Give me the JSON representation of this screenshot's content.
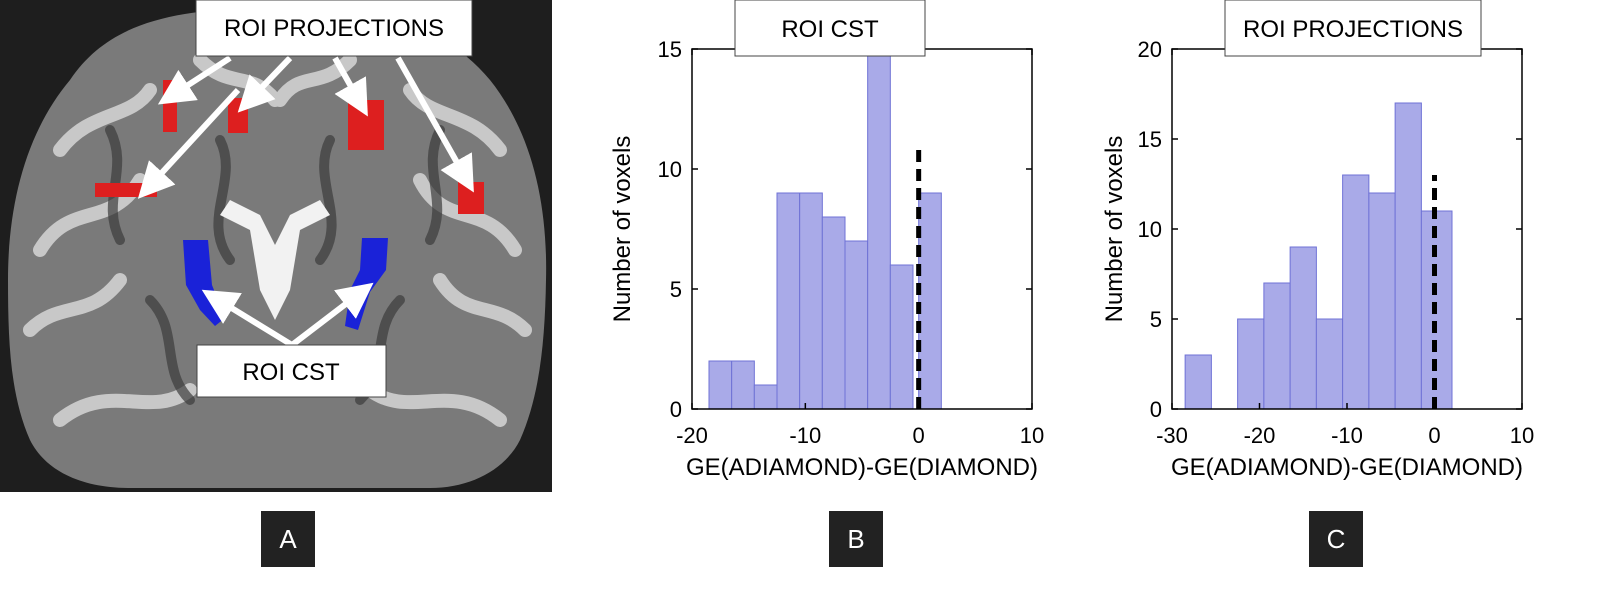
{
  "panel_a": {
    "label_top": "ROI PROJECTIONS",
    "label_bottom": "ROI CST",
    "colors": {
      "background": "#1e1e1e",
      "roi_projections": "#dd1f1f",
      "roi_cst": "#1a22d8",
      "arrow": "#ffffff"
    }
  },
  "panel_letters": [
    "A",
    "B",
    "C"
  ],
  "colors": {
    "bar_fill": "#a9aae8",
    "bar_edge": "#6f72d6",
    "dashed_line": "#000000",
    "axis": "#000000"
  },
  "chart_data": [
    {
      "type": "bar",
      "title": "ROI CST",
      "xlabel": "GE(ADIAMOND)-GE(DIAMOND)",
      "ylabel": "Number of voxels",
      "xlim": [
        -20,
        10
      ],
      "ylim": [
        0,
        15
      ],
      "xticks": [
        -20,
        -10,
        0,
        10
      ],
      "yticks": [
        0,
        5,
        10,
        15
      ],
      "bin_width": 2,
      "bins": [
        {
          "start": -18.5,
          "value": 2
        },
        {
          "start": -16.5,
          "value": 2
        },
        {
          "start": -14.5,
          "value": 1
        },
        {
          "start": -12.5,
          "value": 9
        },
        {
          "start": -10.5,
          "value": 9
        },
        {
          "start": -8.5,
          "value": 8
        },
        {
          "start": -6.5,
          "value": 7
        },
        {
          "start": -4.5,
          "value": 15
        },
        {
          "start": -2.5,
          "value": 6
        },
        {
          "start": 0,
          "value": 9
        }
      ],
      "reference_line": {
        "x": 0,
        "y_top": 11
      }
    },
    {
      "type": "bar",
      "title": "ROI PROJECTIONS",
      "xlabel": "GE(ADIAMOND)-GE(DIAMOND)",
      "ylabel": "Number of voxels",
      "xlim": [
        -30,
        10
      ],
      "ylim": [
        0,
        20
      ],
      "xticks": [
        -30,
        -20,
        -10,
        0,
        10
      ],
      "yticks": [
        0,
        5,
        10,
        15,
        20
      ],
      "bin_width": 3,
      "bins": [
        {
          "start": -28.5,
          "value": 3
        },
        {
          "start": -22.5,
          "value": 5
        },
        {
          "start": -19.5,
          "value": 7
        },
        {
          "start": -16.5,
          "value": 9
        },
        {
          "start": -13.5,
          "value": 5
        },
        {
          "start": -10.5,
          "value": 13
        },
        {
          "start": -7.5,
          "value": 12
        },
        {
          "start": -4.5,
          "value": 17
        },
        {
          "start": -1.5,
          "value": 11
        }
      ],
      "bin_widths_override": [
        3,
        3,
        3,
        3,
        3,
        3,
        3,
        3,
        3.5
      ],
      "reference_line": {
        "x": 0,
        "y_top": 13
      }
    }
  ]
}
